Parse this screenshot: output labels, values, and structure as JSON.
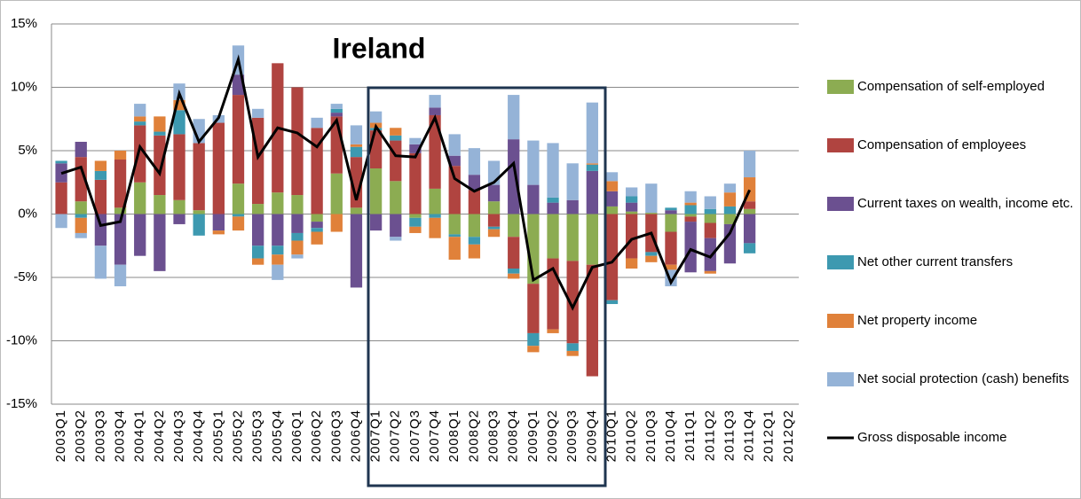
{
  "chart_data": {
    "type": "bar",
    "title": "Ireland",
    "categories": [
      "2003Q1",
      "2003Q2",
      "2003Q3",
      "2003Q4",
      "2004Q1",
      "2004Q2",
      "2004Q3",
      "2004Q4",
      "2005Q1",
      "2005Q2",
      "2005Q3",
      "2005Q4",
      "2006Q1",
      "2006Q2",
      "2006Q3",
      "2006Q4",
      "2007Q1",
      "2007Q2",
      "2007Q3",
      "2007Q4",
      "2008Q1",
      "2008Q2",
      "2008Q3",
      "2008Q4",
      "2009Q1",
      "2009Q2",
      "2009Q3",
      "2009Q4",
      "2010Q1",
      "2010Q2",
      "2010Q3",
      "2010Q4",
      "2011Q1",
      "2011Q2",
      "2011Q3",
      "2011Q4",
      "2012Q1",
      "2012Q2"
    ],
    "stacked": true,
    "ylim": [
      -15,
      15
    ],
    "yticks": [
      {
        "value": -15,
        "label": "-15%"
      },
      {
        "value": -10,
        "label": "-10%"
      },
      {
        "value": -5,
        "label": "-5%"
      },
      {
        "value": 0,
        "label": "0%"
      },
      {
        "value": 5,
        "label": "5%"
      },
      {
        "value": 10,
        "label": "10%"
      },
      {
        "value": 15,
        "label": "15%"
      }
    ],
    "grid": true,
    "legend": "right",
    "series": [
      {
        "name": "Compensation of self-employed",
        "color": "#8cac52",
        "values": [
          0,
          1.0,
          0,
          0.5,
          2.5,
          1.5,
          1.1,
          0.3,
          0,
          2.4,
          0.8,
          1.7,
          1.5,
          -0.6,
          3.2,
          0.5,
          3.6,
          2.6,
          -0.3,
          2.0,
          -1.6,
          -1.8,
          1.0,
          -1.8,
          -5.5,
          -3.5,
          -3.7,
          -4.0,
          0.6,
          0.2,
          0.1,
          -1.4,
          -0.2,
          -0.7,
          -0.8,
          0.4,
          null,
          null
        ]
      },
      {
        "name": "Compensation of employees",
        "color": "#b04440",
        "values": [
          2.5,
          3.5,
          2.7,
          3.8,
          4.5,
          4.7,
          5.2,
          5.3,
          7.2,
          7.0,
          6.8,
          10.2,
          8.5,
          6.8,
          4.5,
          4.0,
          3.0,
          3.2,
          4.8,
          5.8,
          3.8,
          1.9,
          -1.0,
          -2.5,
          -3.9,
          -5.6,
          -6.5,
          -8.8,
          -6.8,
          -3.5,
          -3.0,
          -2.6,
          -0.4,
          -1.2,
          0,
          0.6,
          null,
          null
        ]
      },
      {
        "name": "Current taxes on wealth, income etc.",
        "color": "#6b5090",
        "values": [
          1.5,
          1.2,
          -2.5,
          -4.0,
          -3.3,
          -4.5,
          -0.8,
          0,
          -1.3,
          1.6,
          -2.5,
          -2.5,
          -1.5,
          -0.5,
          0.3,
          -5.8,
          -1.3,
          -1.8,
          0.7,
          0.6,
          0.8,
          1.2,
          1.3,
          5.9,
          2.3,
          0.9,
          1.1,
          3.4,
          1.2,
          0.7,
          0,
          0.3,
          -4.0,
          -2.6,
          -3.1,
          -2.3,
          null,
          null
        ]
      },
      {
        "name": "Net other current transfers",
        "color": "#3d99b0",
        "values": [
          0.2,
          -0.3,
          0.7,
          0,
          0.3,
          0.3,
          1.9,
          -1.7,
          0,
          -0.2,
          -1.0,
          -0.7,
          -0.6,
          -0.3,
          0.3,
          0.8,
          0.2,
          0.4,
          -0.7,
          -0.3,
          -0.2,
          -0.6,
          -0.2,
          -0.4,
          -1.0,
          0.4,
          -0.6,
          0.5,
          -0.3,
          0.5,
          -0.3,
          0.2,
          0.7,
          0.4,
          0.6,
          -0.8,
          null,
          null
        ]
      },
      {
        "name": "Net property income",
        "color": "#e0813a",
        "values": [
          0,
          -1.2,
          0.8,
          0.7,
          0.4,
          1.2,
          0.8,
          0,
          -0.3,
          -1.1,
          -0.5,
          -0.8,
          -1.1,
          -1.0,
          -1.4,
          0.2,
          0.4,
          0.6,
          -0.5,
          -1.6,
          -1.8,
          -1.1,
          -0.6,
          -0.4,
          -0.5,
          -0.3,
          -0.4,
          0.1,
          0.8,
          -0.8,
          -0.5,
          -0.4,
          0.2,
          -0.2,
          1.1,
          1.9,
          null,
          null
        ]
      },
      {
        "name": "Net social protection (cash) benefits",
        "color": "#95b3d7",
        "values": [
          -1.1,
          -0.4,
          -2.6,
          -1.7,
          1.0,
          0,
          1.3,
          1.9,
          0.6,
          2.3,
          0.7,
          -1.2,
          -0.3,
          0.8,
          0.4,
          1.5,
          0.9,
          -0.3,
          0.5,
          1.0,
          1.7,
          2.1,
          1.9,
          3.5,
          3.5,
          4.3,
          2.9,
          4.8,
          0.7,
          0.7,
          2.3,
          -1.3,
          0.9,
          1.0,
          0.7,
          2.1,
          null,
          null
        ]
      },
      {
        "name": "Gross disposable income",
        "color": "#000000",
        "type": "line",
        "values": [
          3.2,
          3.7,
          -0.9,
          -0.6,
          5.3,
          3.2,
          9.5,
          5.7,
          7.6,
          12.2,
          4.5,
          6.8,
          6.4,
          5.3,
          7.4,
          1.1,
          6.9,
          4.6,
          4.5,
          7.6,
          2.8,
          1.8,
          2.5,
          4.0,
          -5.2,
          -4.3,
          -7.4,
          -4.2,
          -3.8,
          -2.0,
          -1.5,
          -5.4,
          -2.8,
          -3.4,
          -1.5,
          1.9,
          null,
          null
        ]
      }
    ]
  }
}
